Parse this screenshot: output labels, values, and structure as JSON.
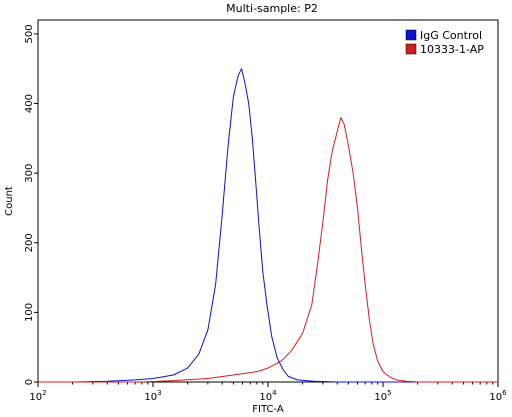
{
  "chart_data": {
    "type": "line",
    "title": "Multi-sample: P2",
    "xlabel": "FITC-A",
    "ylabel": "Count",
    "x_scale": "log",
    "xlim": [
      100,
      1000000
    ],
    "ylim": [
      0,
      520
    ],
    "x_ticks": [
      {
        "value": 100,
        "base": "10",
        "exp": "2"
      },
      {
        "value": 1000,
        "base": "10",
        "exp": "3"
      },
      {
        "value": 10000,
        "base": "10",
        "exp": "4"
      },
      {
        "value": 100000,
        "base": "10",
        "exp": "5"
      },
      {
        "value": 1000000,
        "base": "10",
        "exp": "6"
      }
    ],
    "y_ticks": [
      0,
      100,
      200,
      300,
      400,
      500
    ],
    "grid": false,
    "legend_position": "top-right",
    "series": [
      {
        "name": "IgG Control",
        "color": "#1010d0",
        "points": [
          [
            100,
            0
          ],
          [
            200,
            0
          ],
          [
            400,
            1
          ],
          [
            700,
            3
          ],
          [
            1000,
            5
          ],
          [
            1500,
            10
          ],
          [
            2000,
            20
          ],
          [
            2500,
            40
          ],
          [
            3000,
            75
          ],
          [
            3500,
            140
          ],
          [
            4000,
            240
          ],
          [
            4500,
            340
          ],
          [
            5000,
            410
          ],
          [
            5500,
            440
          ],
          [
            5900,
            450
          ],
          [
            6300,
            430
          ],
          [
            6800,
            400
          ],
          [
            7300,
            350
          ],
          [
            7800,
            290
          ],
          [
            8300,
            230
          ],
          [
            9000,
            160
          ],
          [
            9800,
            110
          ],
          [
            10800,
            65
          ],
          [
            12000,
            35
          ],
          [
            13500,
            18
          ],
          [
            15000,
            8
          ],
          [
            18000,
            3
          ],
          [
            25000,
            1
          ],
          [
            40000,
            0
          ],
          [
            1000000,
            0
          ]
        ]
      },
      {
        "name": "10333-1-AP",
        "color": "#d02020",
        "points": [
          [
            100,
            0
          ],
          [
            800,
            0
          ],
          [
            1500,
            2
          ],
          [
            3000,
            5
          ],
          [
            5000,
            10
          ],
          [
            8000,
            15
          ],
          [
            10000,
            20
          ],
          [
            13000,
            30
          ],
          [
            16000,
            45
          ],
          [
            20000,
            70
          ],
          [
            24000,
            110
          ],
          [
            27000,
            170
          ],
          [
            30000,
            230
          ],
          [
            33000,
            290
          ],
          [
            36000,
            330
          ],
          [
            40000,
            360
          ],
          [
            43000,
            380
          ],
          [
            46000,
            370
          ],
          [
            50000,
            340
          ],
          [
            55000,
            300
          ],
          [
            60000,
            250
          ],
          [
            65000,
            190
          ],
          [
            70000,
            140
          ],
          [
            76000,
            90
          ],
          [
            82000,
            55
          ],
          [
            90000,
            30
          ],
          [
            100000,
            15
          ],
          [
            115000,
            7
          ],
          [
            130000,
            3
          ],
          [
            160000,
            1
          ],
          [
            200000,
            0
          ],
          [
            1000000,
            0
          ]
        ]
      }
    ]
  }
}
